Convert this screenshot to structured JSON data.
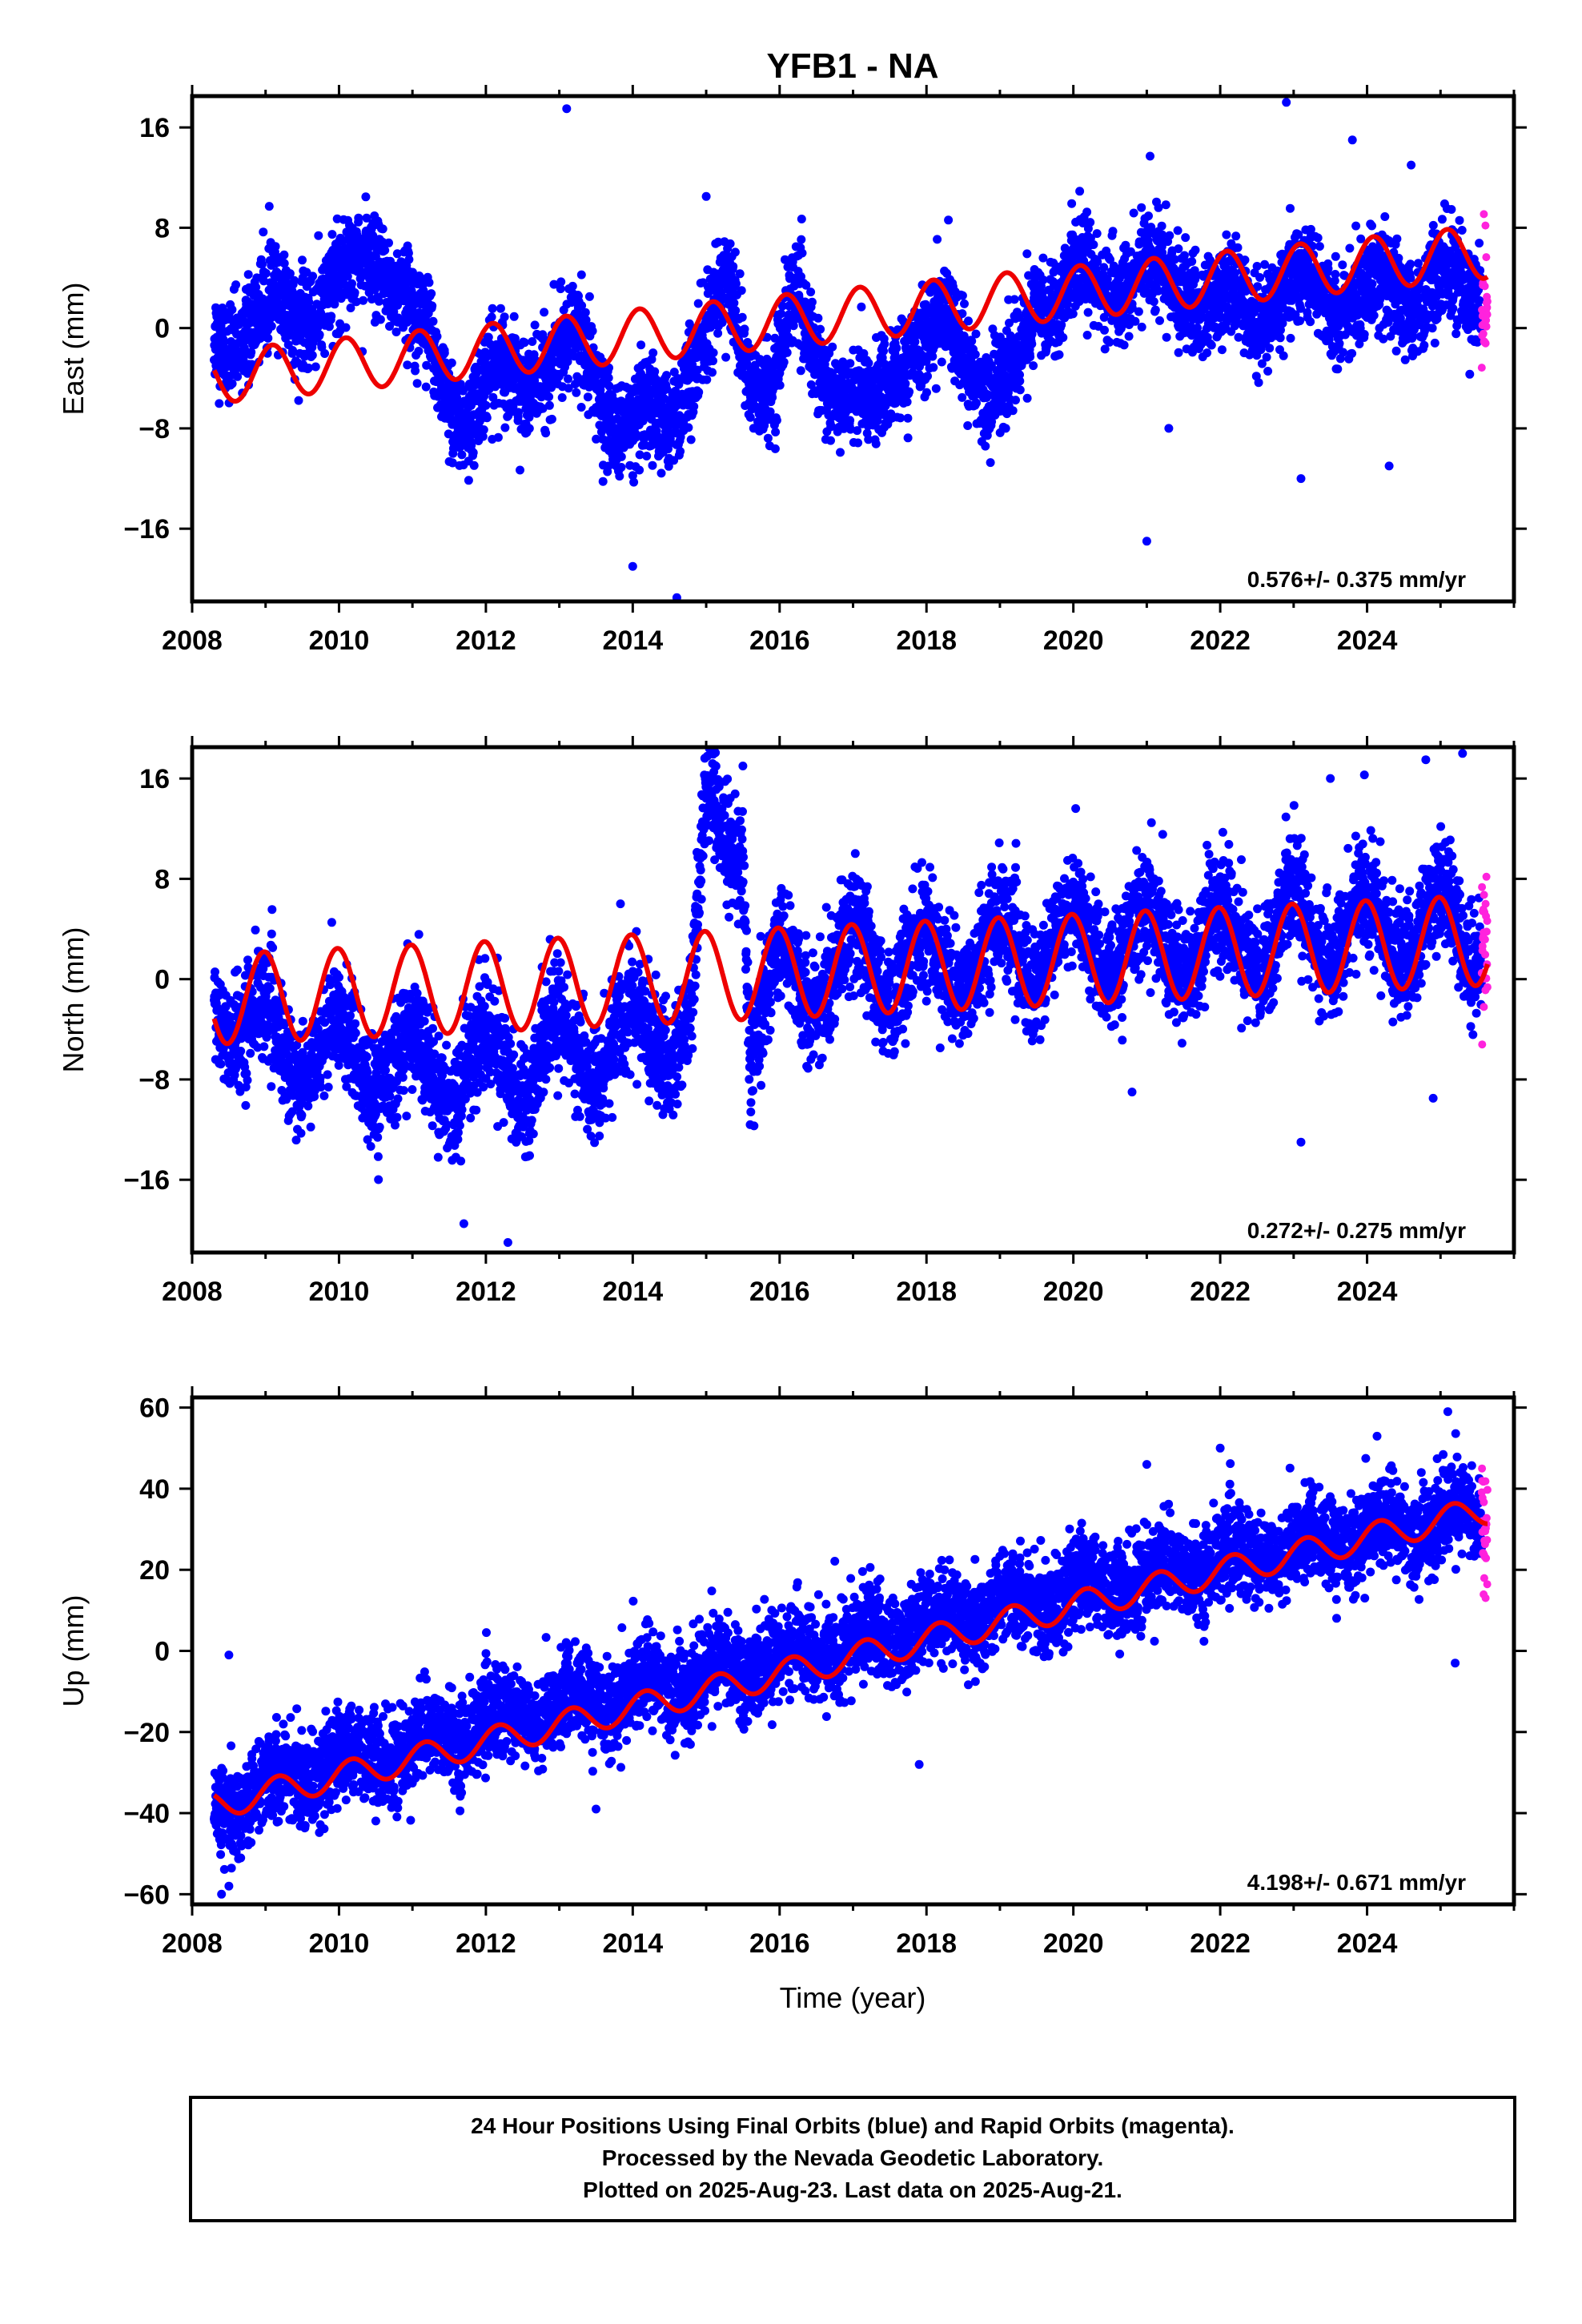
{
  "title": "YFB1 - NA",
  "xlabel": "Time (year)",
  "colors": {
    "final": "#0000ff",
    "rapid": "#ff22dd",
    "model": "#ee0000"
  },
  "footer": [
    "24 Hour Positions Using Final Orbits (blue) and Rapid Orbits (magenta).",
    "Processed by the Nevada Geodetic Laboratory.",
    "Plotted on 2025-Aug-23. Last data on 2025-Aug-21."
  ],
  "chart_data": [
    {
      "type": "scatter",
      "component": "east",
      "ylabel": "East (mm)",
      "xlim": [
        2008,
        2026
      ],
      "ylim": [
        -21.8,
        18.5
      ],
      "xticks": [
        2008,
        2010,
        2012,
        2014,
        2016,
        2018,
        2020,
        2022,
        2024
      ],
      "yticks": [
        16,
        8,
        0,
        -8,
        -16
      ],
      "ytick_labels": [
        "16",
        "8",
        "0",
        "−8",
        "−16"
      ],
      "rate_text": "0.576+/- 0.375 mm/yr",
      "data_start": 2008.3,
      "data_end": 2025.64,
      "rapid_start": 2025.56,
      "model": {
        "intercept": -3.9,
        "rate": 0.576,
        "amplitude": 2.1,
        "phase": 1.0
      },
      "observed_segments": [
        [
          2008.3,
          -1.0
        ],
        [
          2008.7,
          0.5
        ],
        [
          2009.2,
          1.0
        ],
        [
          2009.6,
          2.0
        ],
        [
          2010.0,
          3.0
        ],
        [
          2010.3,
          5.5
        ],
        [
          2010.6,
          6.0
        ],
        [
          2010.9,
          2.0
        ],
        [
          2011.2,
          -1.0
        ],
        [
          2011.5,
          -5.0
        ],
        [
          2011.8,
          -7.0
        ],
        [
          2012.2,
          -4.0
        ],
        [
          2012.6,
          -2.5
        ],
        [
          2012.9,
          -4.0
        ],
        [
          2013.2,
          -1.0
        ],
        [
          2013.5,
          -3.0
        ],
        [
          2013.8,
          -8.0
        ],
        [
          2014.0,
          -9.0
        ],
        [
          2014.4,
          -7.0
        ],
        [
          2014.7,
          -4.0
        ],
        [
          2015.0,
          -2.0
        ],
        [
          2015.3,
          4.0
        ],
        [
          2015.6,
          -3.0
        ],
        [
          2015.9,
          -6.0
        ],
        [
          2016.2,
          2.0
        ],
        [
          2016.5,
          -1.0
        ],
        [
          2016.8,
          -6.0
        ],
        [
          2017.2,
          -7.0
        ],
        [
          2017.6,
          -2.0
        ],
        [
          2018.0,
          -2.0
        ],
        [
          2018.3,
          1.0
        ],
        [
          2018.6,
          -2.0
        ],
        [
          2018.9,
          -6.0
        ],
        [
          2019.2,
          -4.0
        ],
        [
          2019.5,
          3.0
        ],
        [
          2020.0,
          3.0
        ],
        [
          2020.5,
          4.0
        ],
        [
          2021.0,
          4.0
        ],
        [
          2021.6,
          3.5
        ],
        [
          2022.0,
          1.0
        ],
        [
          2022.5,
          2.0
        ],
        [
          2023.0,
          3.0
        ],
        [
          2023.5,
          3.0
        ],
        [
          2024.0,
          2.0
        ],
        [
          2024.5,
          3.0
        ],
        [
          2025.0,
          3.0
        ],
        [
          2025.6,
          3.5
        ]
      ],
      "scatter_sigma": 1.9,
      "outliers": [
        [
          2013.1,
          17.5
        ],
        [
          2022.9,
          18.0
        ],
        [
          2023.8,
          15.0
        ],
        [
          2024.6,
          13.0
        ],
        [
          2014.0,
          -19.0
        ],
        [
          2014.6,
          -21.5
        ],
        [
          2021.0,
          -17.0
        ],
        [
          2023.1,
          -12.0
        ],
        [
          2024.3,
          -11.0
        ],
        [
          2015.0,
          10.5
        ],
        [
          2021.3,
          -8.0
        ]
      ]
    },
    {
      "type": "scatter",
      "component": "north",
      "ylabel": "North (mm)",
      "xlim": [
        2008,
        2026
      ],
      "ylim": [
        -21.8,
        18.5
      ],
      "xticks": [
        2008,
        2010,
        2012,
        2014,
        2016,
        2018,
        2020,
        2022,
        2024
      ],
      "yticks": [
        16,
        8,
        0,
        -8,
        -16
      ],
      "ytick_labels": [
        "16",
        "8",
        "0",
        "−8",
        "−16"
      ],
      "rate_text": "0.272+/- 0.275 mm/yr",
      "data_start": 2008.3,
      "data_end": 2025.64,
      "rapid_start": 2025.56,
      "model": {
        "intercept": -1.6,
        "rate": 0.272,
        "amplitude": 3.6,
        "phase": 1.7
      },
      "observed_segments": [
        [
          2008.3,
          -1.0
        ],
        [
          2009.0,
          -5.0
        ],
        [
          2010.0,
          -6.0
        ],
        [
          2011.0,
          -7.0
        ],
        [
          2012.0,
          -7.0
        ],
        [
          2013.0,
          -6.0
        ],
        [
          2014.0,
          -5.0
        ],
        [
          2014.8,
          -3.0
        ],
        [
          2015.0,
          12.0
        ],
        [
          2015.5,
          12.0
        ],
        [
          2015.6,
          -5.0
        ],
        [
          2016.0,
          0.0
        ],
        [
          2017.0,
          1.0
        ],
        [
          2018.0,
          1.0
        ],
        [
          2019.0,
          2.0
        ],
        [
          2020.0,
          3.0
        ],
        [
          2021.0,
          3.0
        ],
        [
          2022.0,
          3.0
        ],
        [
          2023.0,
          4.0
        ],
        [
          2024.0,
          4.0
        ],
        [
          2025.0,
          4.0
        ],
        [
          2025.6,
          4.0
        ]
      ],
      "scatter_sigma": 2.2,
      "outliers": [
        [
          2011.7,
          -19.5
        ],
        [
          2012.3,
          -21.0
        ],
        [
          2024.8,
          17.5
        ],
        [
          2025.3,
          18.0
        ],
        [
          2023.1,
          -13.0
        ],
        [
          2020.8,
          -9.0
        ],
        [
          2024.9,
          -9.5
        ],
        [
          2023.5,
          16.0
        ],
        [
          2015.5,
          17.0
        ]
      ]
    },
    {
      "type": "scatter",
      "component": "up",
      "ylabel": "Up (mm)",
      "xlim": [
        2008,
        2026
      ],
      "ylim": [
        -62.5,
        62.5
      ],
      "xticks": [
        2008,
        2010,
        2012,
        2014,
        2016,
        2018,
        2020,
        2022,
        2024
      ],
      "yticks": [
        60,
        40,
        20,
        0,
        -20,
        -40,
        -60
      ],
      "ytick_labels": [
        "60",
        "40",
        "20",
        "0",
        "−20",
        "−40",
        "−60"
      ],
      "rate_text": "4.198+/- 0.671 mm/yr",
      "data_start": 2008.3,
      "data_end": 2025.64,
      "rapid_start": 2025.56,
      "model": {
        "intercept": -38.0,
        "rate": 4.198,
        "amplitude": 3.5,
        "phase": 0.5
      },
      "observed_segments": [
        [
          2008.3,
          -40.0
        ],
        [
          2009.0,
          -33.0
        ],
        [
          2010.0,
          -28.0
        ],
        [
          2011.0,
          -24.0
        ],
        [
          2012.0,
          -18.0
        ],
        [
          2013.0,
          -14.0
        ],
        [
          2014.0,
          -10.0
        ],
        [
          2015.0,
          -6.0
        ],
        [
          2016.0,
          -2.0
        ],
        [
          2017.0,
          2.0
        ],
        [
          2018.0,
          6.0
        ],
        [
          2019.0,
          11.0
        ],
        [
          2020.0,
          14.0
        ],
        [
          2021.0,
          18.0
        ],
        [
          2022.0,
          22.0
        ],
        [
          2023.0,
          25.0
        ],
        [
          2024.0,
          29.0
        ],
        [
          2025.0,
          32.0
        ],
        [
          2025.6,
          34.0
        ]
      ],
      "scatter_sigma": 5.5,
      "outliers": [
        [
          2008.5,
          -58.0
        ],
        [
          2008.4,
          -60.0
        ],
        [
          2008.5,
          -1.0
        ],
        [
          2025.1,
          59.0
        ],
        [
          2021.0,
          46.0
        ],
        [
          2022.0,
          50.0
        ],
        [
          2017.9,
          -28.0
        ],
        [
          2013.5,
          -39.0
        ],
        [
          2025.2,
          -3.0
        ]
      ]
    }
  ]
}
